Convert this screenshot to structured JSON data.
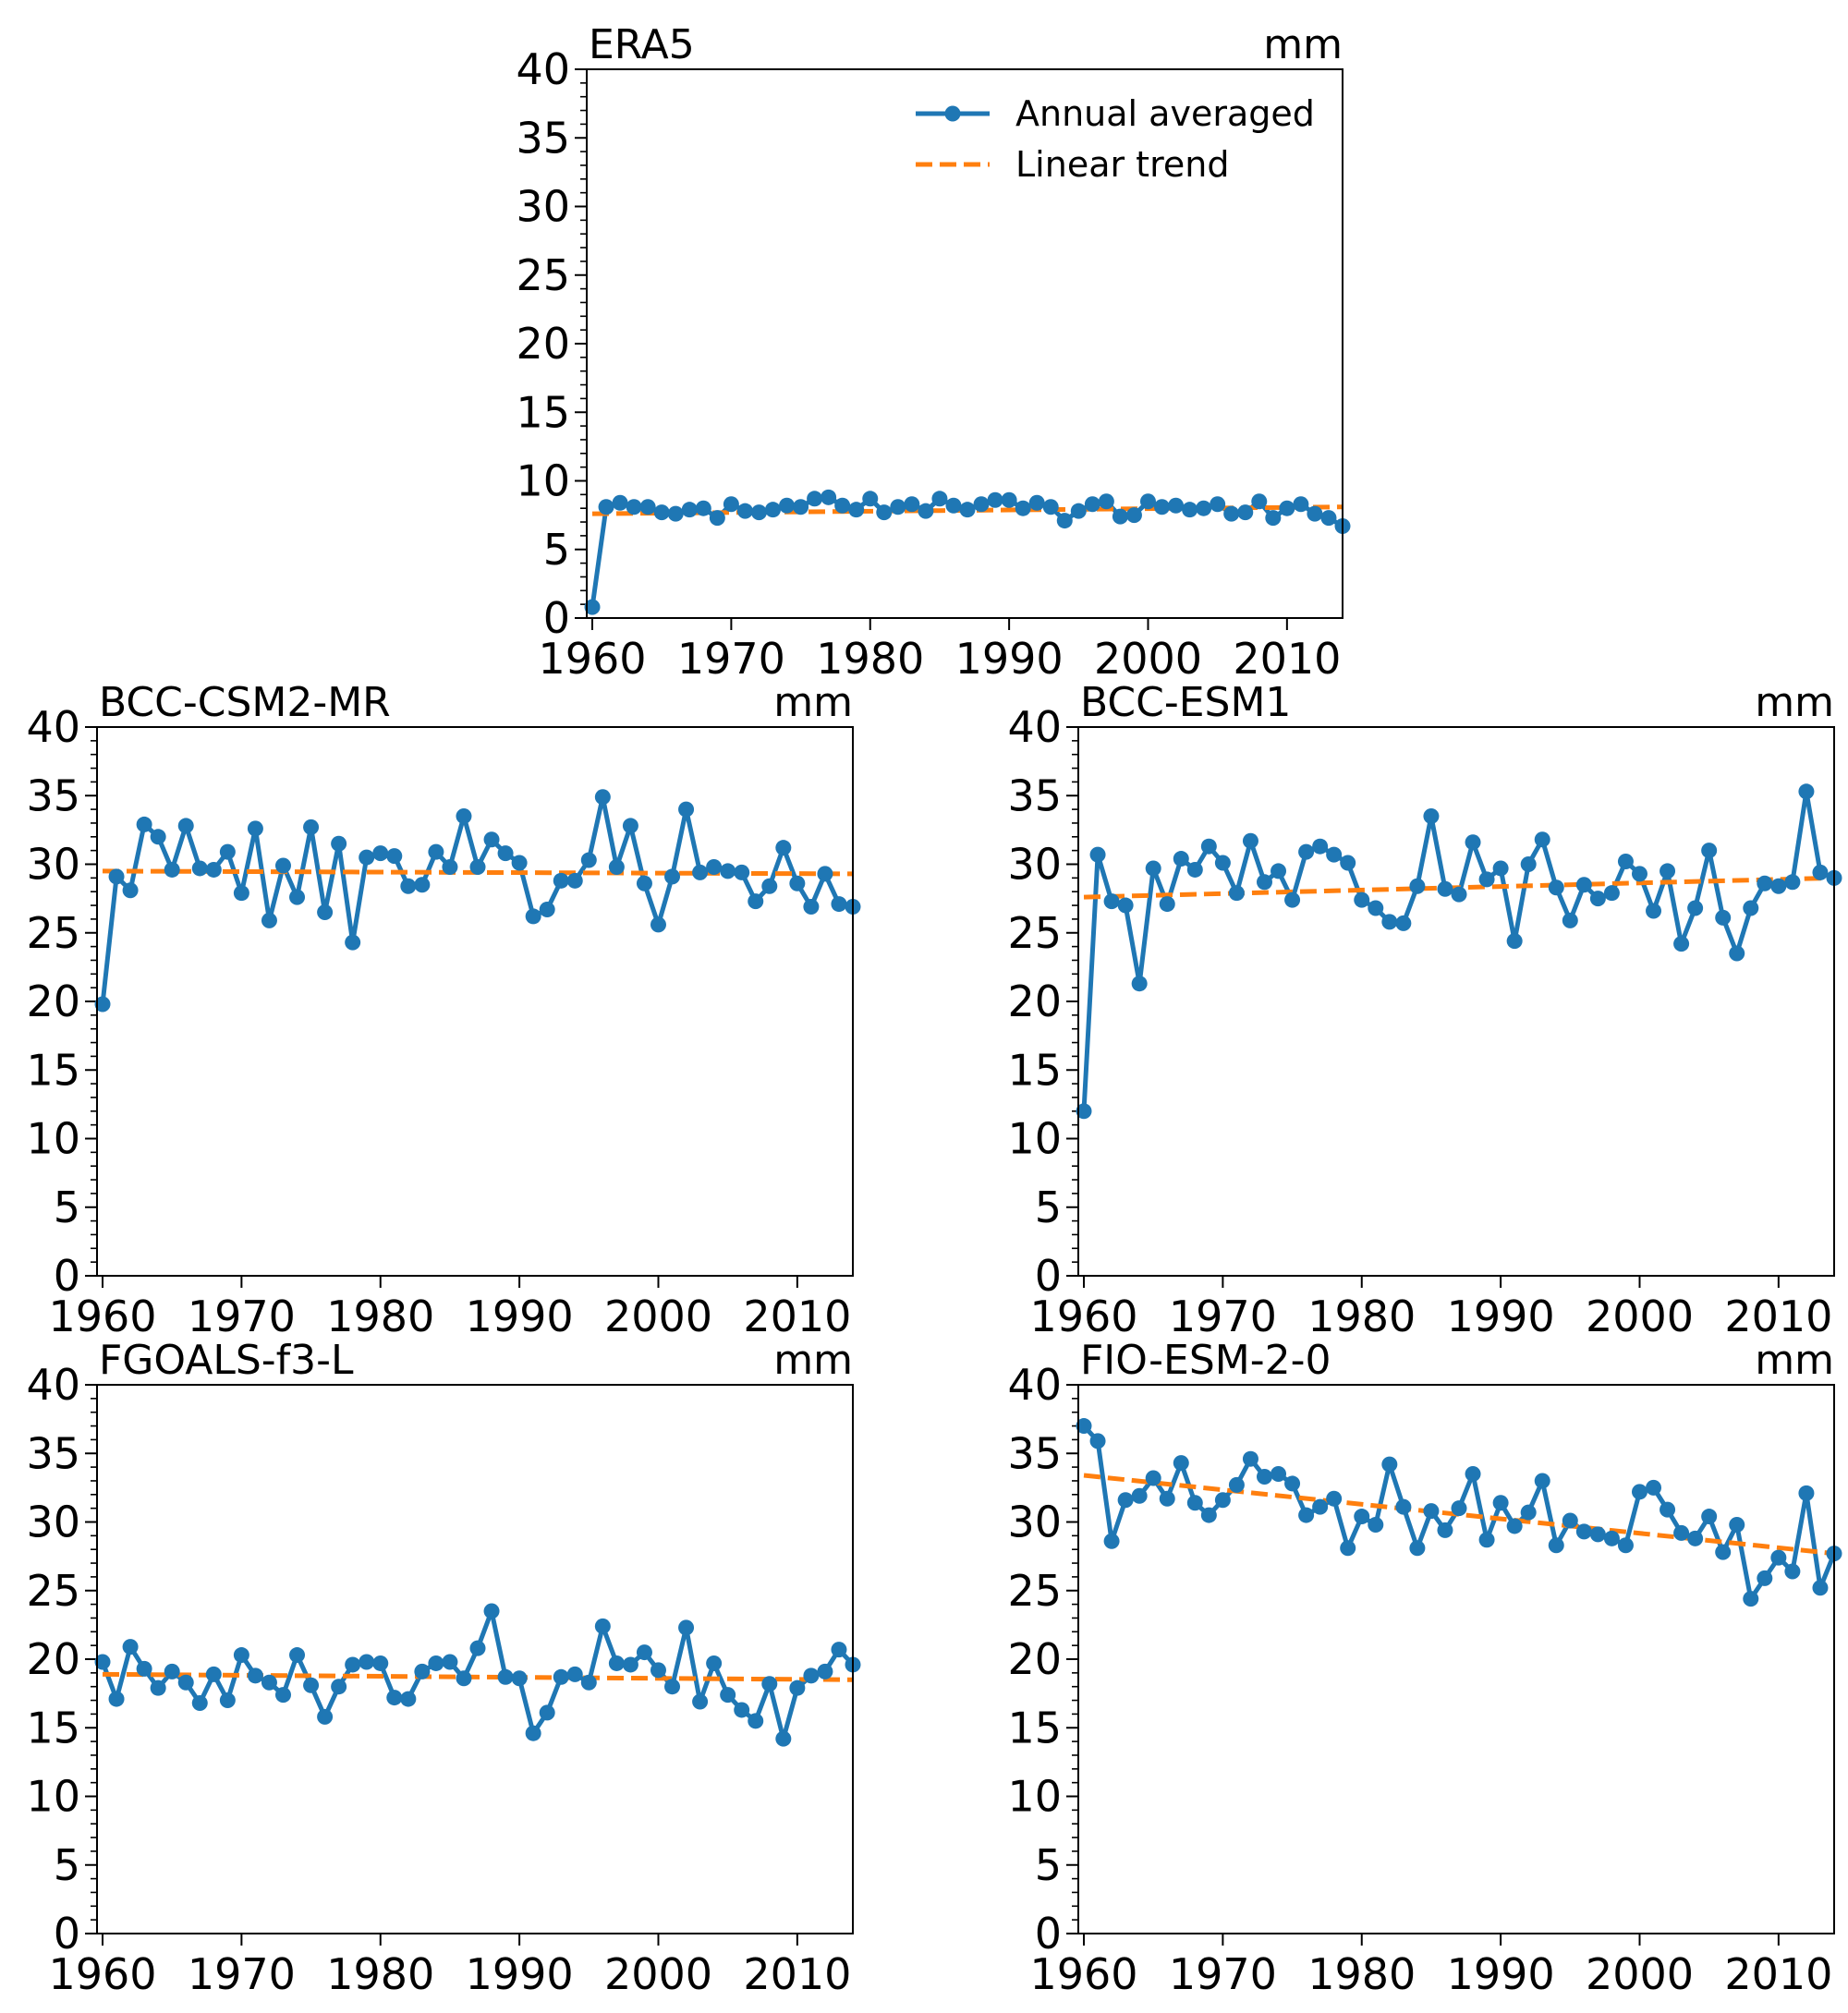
{
  "series_colors": {
    "annual": "#1f77b4",
    "trend": "#ff7f0e"
  },
  "legend": {
    "annual_label": "Annual averaged",
    "trend_label": "Linear trend"
  },
  "chart_data": [
    {
      "type": "line",
      "title": "ERA5",
      "unit": "mm",
      "xlim": [
        1959.6,
        2014
      ],
      "ylim": [
        0,
        40
      ],
      "x_ticks": [
        1960,
        1970,
        1980,
        1990,
        2000,
        2010
      ],
      "y_ticks": [
        0,
        5,
        10,
        15,
        20,
        25,
        30,
        35,
        40
      ],
      "has_legend": true,
      "legend_position": "upper right",
      "x": [
        1960,
        1961,
        1962,
        1963,
        1964,
        1965,
        1966,
        1967,
        1968,
        1969,
        1970,
        1971,
        1972,
        1973,
        1974,
        1975,
        1976,
        1977,
        1978,
        1979,
        1980,
        1981,
        1982,
        1983,
        1984,
        1985,
        1986,
        1987,
        1988,
        1989,
        1990,
        1991,
        1992,
        1993,
        1994,
        1995,
        1996,
        1997,
        1998,
        1999,
        2000,
        2001,
        2002,
        2003,
        2004,
        2005,
        2006,
        2007,
        2008,
        2009,
        2010,
        2011,
        2012,
        2013,
        2014
      ],
      "values": [
        0.8,
        8.1,
        8.4,
        8.1,
        8.1,
        7.7,
        7.6,
        7.9,
        8.0,
        7.3,
        8.3,
        7.8,
        7.7,
        7.9,
        8.2,
        8.1,
        8.7,
        8.8,
        8.2,
        7.9,
        8.7,
        7.7,
        8.1,
        8.3,
        7.8,
        8.7,
        8.2,
        7.9,
        8.3,
        8.6,
        8.6,
        8.0,
        8.4,
        8.1,
        7.1,
        7.8,
        8.3,
        8.5,
        7.4,
        7.5,
        8.5,
        8.1,
        8.2,
        7.9,
        8.0,
        8.3,
        7.6,
        7.7,
        8.5,
        7.3,
        8.0,
        8.3,
        7.6,
        7.3,
        6.7
      ],
      "trend": [
        7.6,
        8.1
      ]
    },
    {
      "type": "line",
      "title": "BCC-CSM2-MR",
      "unit": "mm",
      "xlim": [
        1959.6,
        2014
      ],
      "ylim": [
        0,
        40
      ],
      "x_ticks": [
        1960,
        1970,
        1980,
        1990,
        2000,
        2010
      ],
      "y_ticks": [
        0,
        5,
        10,
        15,
        20,
        25,
        30,
        35,
        40
      ],
      "has_legend": false,
      "x": [
        1960,
        1961,
        1962,
        1963,
        1964,
        1965,
        1966,
        1967,
        1968,
        1969,
        1970,
        1971,
        1972,
        1973,
        1974,
        1975,
        1976,
        1977,
        1978,
        1979,
        1980,
        1981,
        1982,
        1983,
        1984,
        1985,
        1986,
        1987,
        1988,
        1989,
        1990,
        1991,
        1992,
        1993,
        1994,
        1995,
        1996,
        1997,
        1998,
        1999,
        2000,
        2001,
        2002,
        2003,
        2004,
        2005,
        2006,
        2007,
        2008,
        2009,
        2010,
        2011,
        2012,
        2013,
        2014
      ],
      "values": [
        19.8,
        29.1,
        28.1,
        32.9,
        32.0,
        29.6,
        32.8,
        29.7,
        29.6,
        30.9,
        27.9,
        32.6,
        25.9,
        29.9,
        27.6,
        32.7,
        26.5,
        31.5,
        24.3,
        30.5,
        30.8,
        30.6,
        28.4,
        28.5,
        30.9,
        29.8,
        33.5,
        29.8,
        31.8,
        30.8,
        30.1,
        26.2,
        26.7,
        28.8,
        28.8,
        30.3,
        34.9,
        29.8,
        32.8,
        28.6,
        25.6,
        29.1,
        34.0,
        29.4,
        29.8,
        29.5,
        29.4,
        27.3,
        28.4,
        31.2,
        28.6,
        26.9,
        29.3,
        27.1,
        26.9
      ],
      "trend": [
        29.5,
        29.3
      ]
    },
    {
      "type": "line",
      "title": "BCC-ESM1",
      "unit": "mm",
      "xlim": [
        1959.6,
        2014
      ],
      "ylim": [
        0,
        40
      ],
      "x_ticks": [
        1960,
        1970,
        1980,
        1990,
        2000,
        2010
      ],
      "y_ticks": [
        0,
        5,
        10,
        15,
        20,
        25,
        30,
        35,
        40
      ],
      "has_legend": false,
      "x": [
        1960,
        1961,
        1962,
        1963,
        1964,
        1965,
        1966,
        1967,
        1968,
        1969,
        1970,
        1971,
        1972,
        1973,
        1974,
        1975,
        1976,
        1977,
        1978,
        1979,
        1980,
        1981,
        1982,
        1983,
        1984,
        1985,
        1986,
        1987,
        1988,
        1989,
        1990,
        1991,
        1992,
        1993,
        1994,
        1995,
        1996,
        1997,
        1998,
        1999,
        2000,
        2001,
        2002,
        2003,
        2004,
        2005,
        2006,
        2007,
        2008,
        2009,
        2010,
        2011,
        2012,
        2013,
        2014
      ],
      "values": [
        12.0,
        30.7,
        27.3,
        27.0,
        21.3,
        29.7,
        27.1,
        30.4,
        29.6,
        31.3,
        30.1,
        27.9,
        31.7,
        28.7,
        29.5,
        27.4,
        30.9,
        31.3,
        30.7,
        30.1,
        27.4,
        26.8,
        25.8,
        25.7,
        28.4,
        33.5,
        28.2,
        27.8,
        31.6,
        28.9,
        29.7,
        24.4,
        30.0,
        31.8,
        28.3,
        25.9,
        28.5,
        27.5,
        27.9,
        30.2,
        29.3,
        26.6,
        29.5,
        24.2,
        26.8,
        31.0,
        26.1,
        23.5,
        26.8,
        28.6,
        28.4,
        28.7,
        35.3,
        29.4,
        29.0
      ],
      "trend": [
        27.6,
        29.0
      ]
    },
    {
      "type": "line",
      "title": "FGOALS-f3-L",
      "unit": "mm",
      "xlim": [
        1959.6,
        2014
      ],
      "ylim": [
        0,
        40
      ],
      "x_ticks": [
        1960,
        1970,
        1980,
        1990,
        2000,
        2010
      ],
      "y_ticks": [
        0,
        5,
        10,
        15,
        20,
        25,
        30,
        35,
        40
      ],
      "has_legend": false,
      "x": [
        1960,
        1961,
        1962,
        1963,
        1964,
        1965,
        1966,
        1967,
        1968,
        1969,
        1970,
        1971,
        1972,
        1973,
        1974,
        1975,
        1976,
        1977,
        1978,
        1979,
        1980,
        1981,
        1982,
        1983,
        1984,
        1985,
        1986,
        1987,
        1988,
        1989,
        1990,
        1991,
        1992,
        1993,
        1994,
        1995,
        1996,
        1997,
        1998,
        1999,
        2000,
        2001,
        2002,
        2003,
        2004,
        2005,
        2006,
        2007,
        2008,
        2009,
        2010,
        2011,
        2012,
        2013,
        2014
      ],
      "values": [
        19.8,
        17.1,
        20.9,
        19.3,
        17.9,
        19.1,
        18.3,
        16.8,
        18.9,
        17.0,
        20.3,
        18.8,
        18.3,
        17.4,
        20.3,
        18.1,
        15.8,
        18.0,
        19.6,
        19.8,
        19.7,
        17.2,
        17.1,
        19.1,
        19.7,
        19.8,
        18.6,
        20.8,
        23.5,
        18.7,
        18.6,
        14.6,
        16.1,
        18.7,
        18.9,
        18.3,
        22.4,
        19.7,
        19.6,
        20.5,
        19.2,
        18.0,
        22.3,
        16.9,
        19.7,
        17.4,
        16.3,
        15.5,
        18.2,
        14.2,
        17.9,
        18.8,
        19.1,
        20.7,
        19.6
      ],
      "trend": [
        18.9,
        18.5
      ]
    },
    {
      "type": "line",
      "title": "FIO-ESM-2-0",
      "unit": "mm",
      "xlim": [
        1959.6,
        2014
      ],
      "ylim": [
        0,
        40
      ],
      "x_ticks": [
        1960,
        1970,
        1980,
        1990,
        2000,
        2010
      ],
      "y_ticks": [
        0,
        5,
        10,
        15,
        20,
        25,
        30,
        35,
        40
      ],
      "has_legend": false,
      "x": [
        1960,
        1961,
        1962,
        1963,
        1964,
        1965,
        1966,
        1967,
        1968,
        1969,
        1970,
        1971,
        1972,
        1973,
        1974,
        1975,
        1976,
        1977,
        1978,
        1979,
        1980,
        1981,
        1982,
        1983,
        1984,
        1985,
        1986,
        1987,
        1988,
        1989,
        1990,
        1991,
        1992,
        1993,
        1994,
        1995,
        1996,
        1997,
        1998,
        1999,
        2000,
        2001,
        2002,
        2003,
        2004,
        2005,
        2006,
        2007,
        2008,
        2009,
        2010,
        2011,
        2012,
        2013,
        2014
      ],
      "values": [
        37.0,
        35.9,
        28.6,
        31.6,
        31.9,
        33.2,
        31.7,
        34.3,
        31.4,
        30.5,
        31.6,
        32.7,
        34.6,
        33.3,
        33.5,
        32.8,
        30.5,
        31.1,
        31.7,
        28.1,
        30.4,
        29.8,
        34.2,
        31.1,
        28.1,
        30.8,
        29.4,
        31.0,
        33.5,
        28.7,
        31.4,
        29.7,
        30.7,
        33.0,
        28.3,
        30.1,
        29.3,
        29.1,
        28.8,
        28.3,
        32.2,
        32.5,
        30.9,
        29.2,
        28.8,
        30.4,
        27.8,
        29.8,
        24.4,
        25.9,
        27.4,
        26.4,
        32.1,
        25.2,
        27.7
      ],
      "trend": [
        33.4,
        27.7
      ]
    }
  ]
}
